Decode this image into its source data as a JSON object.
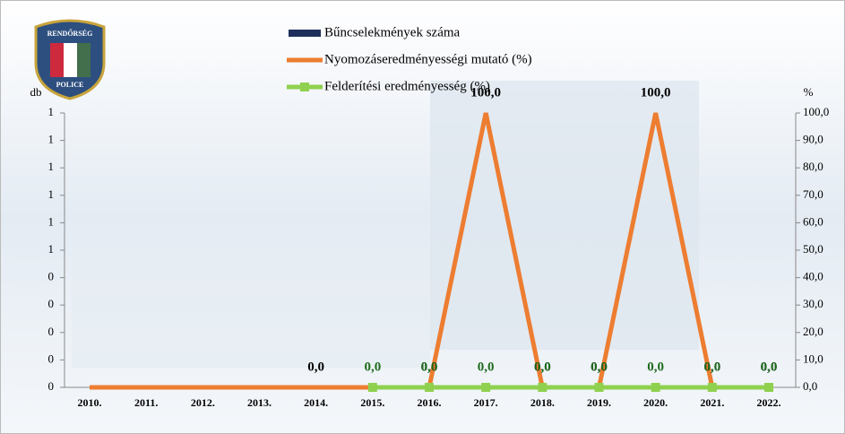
{
  "logo": {
    "top": "RENDŐRSÉG",
    "bottom": "POLICE"
  },
  "chart_data": {
    "type": "bar-line",
    "y_label": "db",
    "y2_label": "%",
    "categories": [
      "2010.",
      "2011.",
      "2012.",
      "2013.",
      "2014.",
      "2015.",
      "2016.",
      "2017.",
      "2018.",
      "2019.",
      "2020.",
      "2021.",
      "2022."
    ],
    "ylim": [
      0,
      1
    ],
    "yticks": [
      {
        "value": 0,
        "label": "0"
      },
      {
        "value": 0.1,
        "label": "0"
      },
      {
        "value": 0.2,
        "label": "0"
      },
      {
        "value": 0.3,
        "label": "0"
      },
      {
        "value": 0.4,
        "label": "0"
      },
      {
        "value": 0.5,
        "label": "1"
      },
      {
        "value": 0.6,
        "label": "1"
      },
      {
        "value": 0.7,
        "label": "1"
      },
      {
        "value": 0.8,
        "label": "1"
      },
      {
        "value": 0.9,
        "label": "1"
      },
      {
        "value": 1,
        "label": "1"
      }
    ],
    "y2lim": [
      0,
      100
    ],
    "y2ticks": [
      {
        "value": 0,
        "label": "0,0"
      },
      {
        "value": 10,
        "label": "10,0"
      },
      {
        "value": 20,
        "label": "20,0"
      },
      {
        "value": 30,
        "label": "30,0"
      },
      {
        "value": 40,
        "label": "40,0"
      },
      {
        "value": 50,
        "label": "50,0"
      },
      {
        "value": 60,
        "label": "60,0"
      },
      {
        "value": 70,
        "label": "70,0"
      },
      {
        "value": 80,
        "label": "80,0"
      },
      {
        "value": 90,
        "label": "90,0"
      },
      {
        "value": 100,
        "label": "100,0"
      }
    ],
    "series": [
      {
        "name": "Bűncselekmények száma",
        "type": "bar",
        "color": "#1f2f5c",
        "values": [
          0,
          0,
          0,
          0,
          0,
          0,
          0,
          0,
          0,
          0,
          0,
          0,
          0
        ]
      },
      {
        "name": "Nyomozáseredményességi mutató (%)",
        "type": "line",
        "axis": "y2",
        "color": "#ed7d31",
        "label_color": "#000000",
        "values": [
          0,
          0,
          0,
          0,
          0,
          0,
          0,
          100,
          0,
          0,
          100,
          0,
          0
        ],
        "value_labels": [
          null,
          null,
          null,
          null,
          "0,0",
          null,
          "0,0",
          "100,0",
          "0,0",
          "0,0",
          "100,0",
          "0,0",
          "0,0"
        ]
      },
      {
        "name": "Felderítési eredményesség (%)",
        "type": "line",
        "marker": true,
        "axis": "y2",
        "color": "#8fd14f",
        "label_color": "#1e6b1e",
        "values": [
          null,
          null,
          null,
          null,
          null,
          0,
          0,
          0,
          0,
          0,
          0,
          0,
          0
        ],
        "value_labels": [
          null,
          null,
          null,
          null,
          null,
          "0,0",
          "0,0",
          "0,0",
          "0,0",
          "0,0",
          "0,0",
          "0,0",
          "0,0"
        ]
      }
    ]
  }
}
